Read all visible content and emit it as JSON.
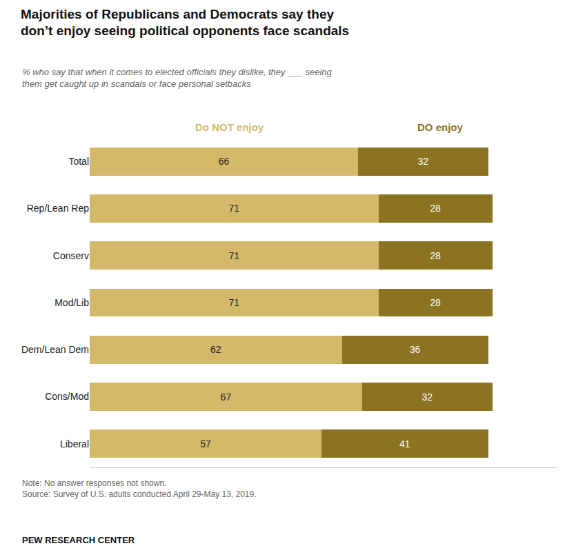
{
  "chart_data": {
    "type": "bar",
    "orientation": "horizontal",
    "stacked": true,
    "data_labels": true,
    "tick_labels": "y",
    "title": "Majorities of Republicans and Democrats say they\ndon’t enjoy seeing political opponents face scandals",
    "subtitle": "% who say that when it comes to elected officials they dislike, they ___ seeing\nthem get caught up in scandals or face personal setbacks",
    "annotations": [
      "Note: No answer responses not shown.\nSource: Survey of U.S. adults conducted April 29-May 13, 2019.",
      "PEW RESEARCH CENTER"
    ],
    "categories": [
      "Total",
      "Rep/Lean Rep",
      "Conserv",
      "Mod/Lib",
      "Dem/Lean Dem",
      "Cons/Mod",
      "Liberal"
    ],
    "series": [
      {
        "name": "Do NOT enjoy",
        "color": "#D4B96A",
        "values": [
          66,
          71,
          71,
          71,
          62,
          67,
          57
        ]
      },
      {
        "name": "DO enjoy",
        "color": "#8B7322",
        "values": [
          32,
          28,
          28,
          28,
          36,
          32,
          41
        ]
      }
    ],
    "xlim": [
      0,
      115
    ]
  }
}
